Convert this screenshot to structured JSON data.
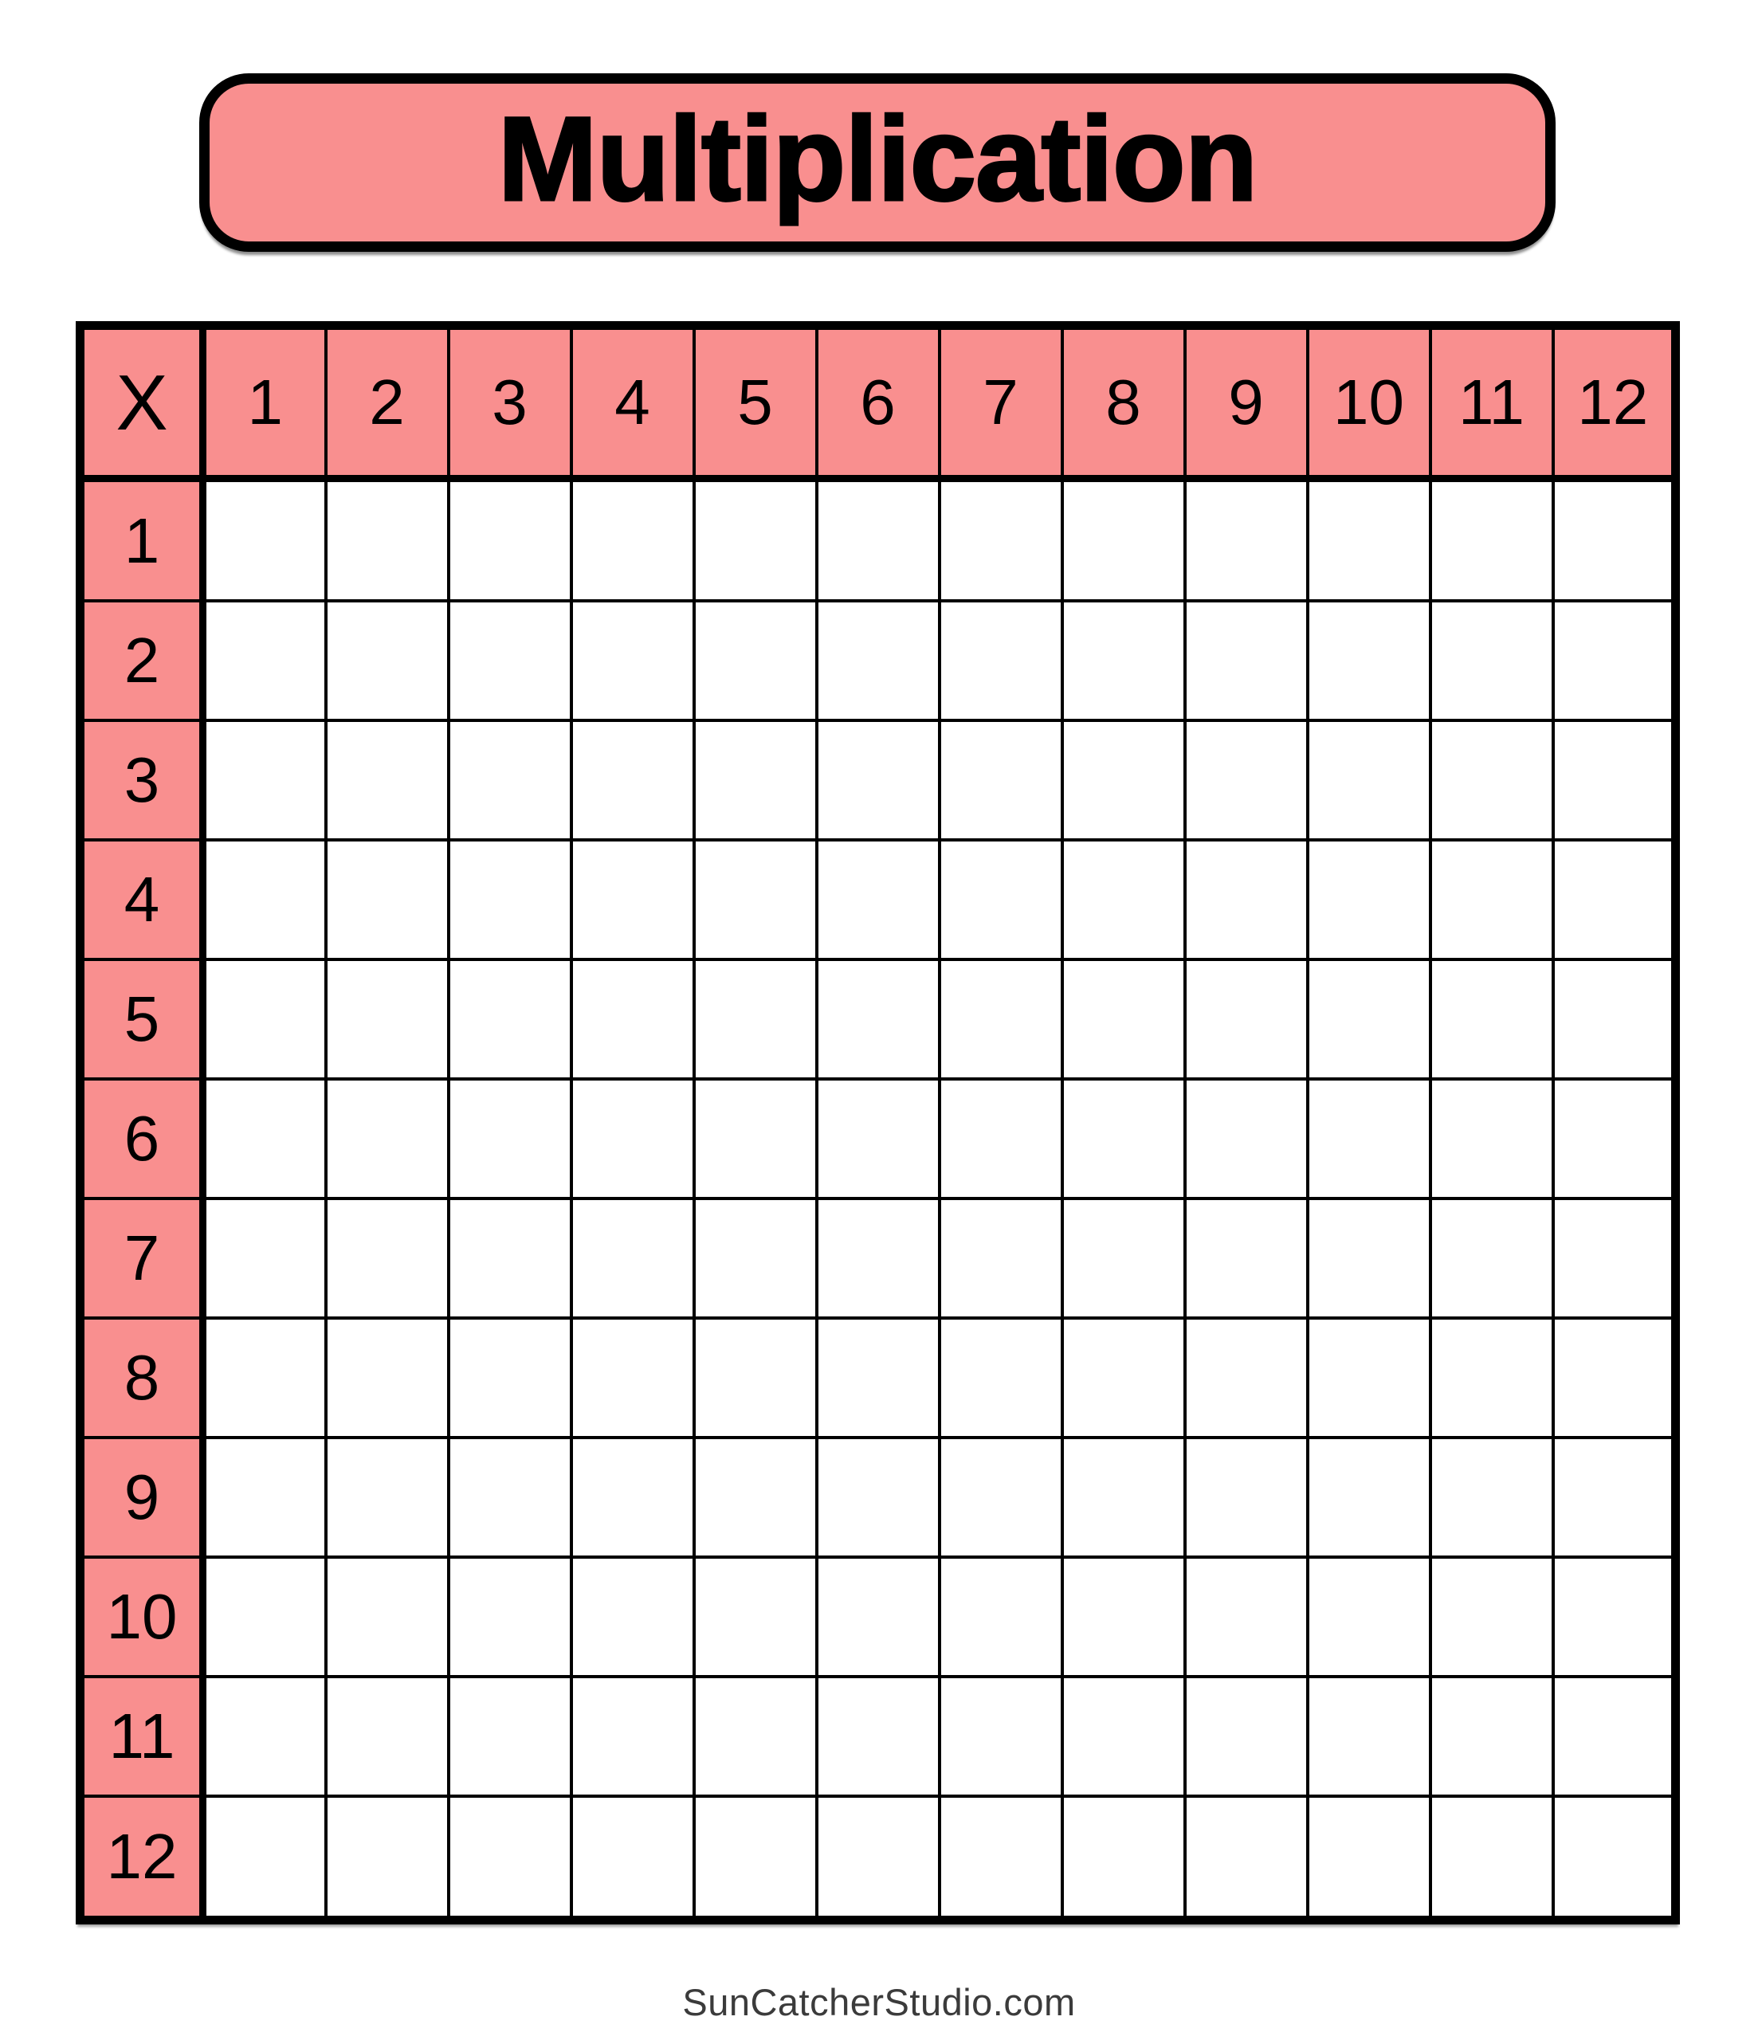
{
  "banner": {
    "title": "Multiplication",
    "fill_color": "#F98F8F",
    "border_color": "#000000",
    "text_color": "#000000"
  },
  "grid": {
    "corner_label": "X",
    "column_headers": [
      "1",
      "2",
      "3",
      "4",
      "5",
      "6",
      "7",
      "8",
      "9",
      "10",
      "11",
      "12"
    ],
    "row_headers": [
      "1",
      "2",
      "3",
      "4",
      "5",
      "6",
      "7",
      "8",
      "9",
      "10",
      "11",
      "12"
    ],
    "body_cell_value": "",
    "header_fill_color": "#F98F8F",
    "body_fill_color": "#FFFFFF",
    "line_color": "#000000"
  },
  "footer": {
    "text": "SunCatcherStudio.com",
    "text_color": "#3B3B3B"
  }
}
